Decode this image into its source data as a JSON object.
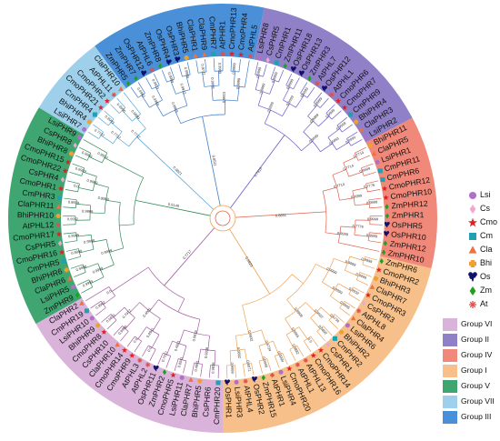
{
  "groups": [
    {
      "label": "Group VI",
      "color": "#d9b3d9",
      "line": "#a35ca3"
    },
    {
      "label": "Group II",
      "color": "#8f80c8",
      "line": "#6a5acd"
    },
    {
      "label": "Group IV",
      "color": "#f0897a",
      "line": "#e0604e"
    },
    {
      "label": "Group I",
      "color": "#f7c08a",
      "line": "#f0a050"
    },
    {
      "label": "Group V",
      "color": "#3fa672",
      "line": "#2e8b57"
    },
    {
      "label": "Group VII",
      "color": "#9ed0ec",
      "line": "#5aa8d8"
    },
    {
      "label": "Group III",
      "color": "#4a90d9",
      "line": "#3a7bc8"
    }
  ],
  "species": [
    {
      "label": "Lsi",
      "icon": "circle",
      "color": "#b070c8"
    },
    {
      "label": "Cs",
      "icon": "diamond",
      "color": "#f0a8d0"
    },
    {
      "label": "Cmo",
      "icon": "star",
      "color": "#e02020"
    },
    {
      "label": "Cm",
      "icon": "square",
      "color": "#20a0b0"
    },
    {
      "label": "Cla",
      "icon": "triangle",
      "color": "#f07040"
    },
    {
      "label": "Bhi",
      "icon": "cross",
      "color": "#f0a030"
    },
    {
      "label": "Os",
      "icon": "trefoil",
      "color": "#10106a"
    },
    {
      "label": "Zm",
      "icon": "diamond",
      "color": "#20a020"
    },
    {
      "label": "At",
      "icon": "asterisk",
      "color": "#e05050"
    }
  ],
  "tree": [
    {
      "group": 0,
      "leaves": [
        [
          "CmPHR20",
          "Cm",
          "0.9839"
        ],
        [
          "CsPHR6",
          "Cs",
          "0.9822"
        ],
        [
          "BhiPHR5",
          "Bhi",
          "0.4801"
        ],
        [
          "ClaPHR7",
          "Cla",
          "0.9999"
        ],
        [
          "LsiPHR11",
          "Lsi",
          "0.8941"
        ],
        [
          "CmoPHR5",
          "Cmo",
          "0.6542"
        ],
        [
          "ZmPHR2",
          "Zm",
          "0.7917"
        ],
        [
          "OsPHR11",
          "Os",
          "0.6225"
        ],
        [
          "AtPHL2",
          "At",
          "0.0"
        ],
        [
          "AtPHL3",
          "At",
          "0.9999"
        ],
        [
          "CmoPHR9",
          "Cmo",
          "0.0"
        ],
        [
          "CmoPHR14",
          "Cmo",
          "0.9855"
        ],
        [
          "ClaPHR10",
          "Cla",
          "0.9988"
        ],
        [
          "CsPHR10",
          "Cs",
          "0.9999"
        ],
        [
          "CmoPHR8",
          "Cmo",
          "0.9831"
        ],
        [
          "BhiPHR9",
          "Bhi",
          "0.99"
        ],
        [
          "LsiPHR10",
          "Lsi",
          "0.9962"
        ],
        [
          "CmPHR19",
          "Cm",
          "0.9999"
        ],
        [
          "ClaPHR2",
          "Cla",
          "0.9999"
        ]
      ]
    },
    {
      "group": 4,
      "leaves": [
        [
          "ZmPHR9",
          "Zm",
          "0.9999"
        ],
        [
          "LsiPHR5",
          "Lsi",
          "0.9981"
        ],
        [
          "ClaPHR6",
          "Cla",
          "0.9988"
        ],
        [
          "BhiPHR6",
          "Bhi",
          "0.9961"
        ],
        [
          "CmPHR5",
          "Cm",
          "0.9999"
        ],
        [
          "CmoPHR16",
          "Cmo",
          "0.0"
        ],
        [
          "CsPHR5",
          "Cs",
          "0.9989"
        ],
        [
          "CmoPHR17",
          "Cmo",
          "0.9987"
        ],
        [
          "AtPHL12",
          "At",
          "0.9932"
        ],
        [
          "BhiPHR10",
          "Bhi",
          "0.9931"
        ],
        [
          "ClaPHR11",
          "Cla",
          "0.9939"
        ],
        [
          "CmPHR3",
          "Cm",
          "0.9974"
        ],
        [
          "CmoPHR1",
          "Cmo",
          "0.0"
        ],
        [
          "CsPHR4",
          "Cs",
          "0.9999"
        ],
        [
          "CmoPHR22",
          "Cmo",
          "0.9999"
        ],
        [
          "CmoPHR15",
          "Cmo",
          "0.9999"
        ],
        [
          "BhiPHR8",
          "Bhi",
          "0.9999"
        ],
        [
          "CsPHR8",
          "Cs",
          "0.9983"
        ],
        [
          "LsiPHR9",
          "Lsi",
          "0.9999"
        ]
      ]
    },
    {
      "group": 5,
      "leaves": [
        [
          "LsiPHR7",
          "Lsi",
          "0.7737"
        ],
        [
          "BhiPHR4",
          "Bhi",
          "0.9708"
        ],
        [
          "CmPHR4",
          "Cm",
          "0.9999"
        ],
        [
          "CmoPHR21",
          "Cmo",
          "0.8611"
        ],
        [
          "CmoPHR2",
          "Cmo",
          "0.9996"
        ],
        [
          "AtPHL11",
          "At",
          "0.5249"
        ],
        [
          "ClaPHR10",
          "Cla",
          "0.9995"
        ]
      ]
    },
    {
      "group": 6,
      "leaves": [
        [
          "ZmPHR5",
          "Zm",
          "0.9969"
        ],
        [
          "ZmPHR7",
          "Zm",
          "0.9999"
        ],
        [
          "OsPHR12",
          "Os",
          "0.9923"
        ],
        [
          "AtPHL6",
          "At",
          "0.9659"
        ],
        [
          "ZmPHR8",
          "Zm",
          "0.9999"
        ],
        [
          "OsPHR4",
          "Os",
          "0.9771"
        ],
        [
          "OsPHR3",
          "Os",
          "0.9999"
        ],
        [
          "BhiPHR5",
          "Bhi",
          "0.9999"
        ],
        [
          "ClaPHR1",
          "Cla",
          "0.9722"
        ],
        [
          "ClaPHR9",
          "Cla",
          "0.9999"
        ],
        [
          "CmPHR7",
          "Cm",
          "0.9999"
        ],
        [
          "AtPHR1",
          "At",
          "0.9973"
        ],
        [
          "CmoPHR13",
          "Cmo",
          "0.9999"
        ],
        [
          "CmoPHR4",
          "Cmo",
          "0.9999"
        ],
        [
          "AtPHL5",
          "At",
          "0.9973"
        ]
      ]
    },
    {
      "group": 1,
      "leaves": [
        [
          "LsiPHR8",
          "Lsi",
          "0.9999"
        ],
        [
          "CsPHR5",
          "Cs",
          "0.9999"
        ],
        [
          "CmPHR1",
          "Cm",
          "0.9999"
        ],
        [
          "ZmPHR11",
          "Zm",
          "0.9999"
        ],
        [
          "OsPHR18",
          "Os",
          "0.9999"
        ],
        [
          "OsPHR13",
          "Os",
          "0.9999"
        ],
        [
          "ZmPHR3",
          "Zm",
          "0.6893"
        ],
        [
          "AtPHL7",
          "At",
          "0.9961"
        ],
        [
          "OsPHR12",
          "Os",
          "0.9999"
        ],
        [
          "AtPHL1",
          "At",
          "0.9999"
        ],
        [
          "CmoPHR6",
          "Cmo",
          "0.9999"
        ],
        [
          "CmoPHR7",
          "Cmo",
          "0.9999"
        ],
        [
          "CmPHR9",
          "Cm",
          "0.9999"
        ],
        [
          "BhiPHR4",
          "Bhi",
          "0.9999"
        ],
        [
          "ClaPHR3",
          "Cla",
          "0.9999"
        ],
        [
          "LsiPHR2",
          "Lsi",
          "0.7847"
        ]
      ]
    },
    {
      "group": 2,
      "leaves": [
        [
          "BhiPHR11",
          "Bhi",
          "0.7714"
        ],
        [
          "ClaPHR5",
          "Cla",
          "0.9768"
        ],
        [
          "LsiPHR1",
          "Lsi",
          "0.9999"
        ],
        [
          "CmPHR11",
          "Cm",
          "0.9909"
        ],
        [
          "CmPHR6",
          "Cm",
          "0.7776"
        ],
        [
          "CmoPHR12",
          "Cmo",
          "0.9919"
        ],
        [
          "CmoPHR10",
          "Cmo",
          "0.9999"
        ],
        [
          "ZmPHR12",
          "Zm",
          "0.9776"
        ],
        [
          "ZmPHR1",
          "Zm",
          "0.9999"
        ],
        [
          "OsPHR5",
          "Os",
          "0.9956"
        ],
        [
          "OsPHR10",
          "Os",
          "0.9989"
        ],
        [
          "ZmPHR12",
          "Zm",
          "0.6221"
        ],
        [
          "ZmPHR10",
          "Zm",
          "0.9999"
        ]
      ]
    },
    {
      "group": 3,
      "leaves": [
        [
          "ZmPHR6",
          "Zm",
          "0.9999"
        ],
        [
          "CmoPHR2",
          "Cmo",
          "0.9999"
        ],
        [
          "BhiPHR3",
          "Bhi",
          "0.9999"
        ],
        [
          "ClaPHR7",
          "Cla",
          "0.9953"
        ],
        [
          "CmoPHR3",
          "Cmo",
          "0.9932"
        ],
        [
          "CsPHR3",
          "Cs",
          "0.6033"
        ],
        [
          "AtPHL8",
          "At",
          "0.9965"
        ],
        [
          "ClaPHR4",
          "Cla",
          "0.7676"
        ],
        [
          "LsiPHR6",
          "Lsi",
          "0.6734"
        ],
        [
          "BhiPHR2",
          "Bhi",
          "0.8792"
        ],
        [
          "CmPHR2",
          "Cm",
          "0.5892"
        ],
        [
          "CsPHR1",
          "Cs",
          "0.6474"
        ],
        [
          "CmoPHR14",
          "Cmo",
          "0.0"
        ],
        [
          "CmoPHR16",
          "Cmo",
          "0.9999"
        ],
        [
          "AtPHL13",
          "At",
          "0.9882"
        ],
        [
          "AtPHL1",
          "At",
          "0.9999"
        ],
        [
          "CmoPHR20",
          "Cmo",
          "0.9999"
        ],
        [
          "LsiPHR4",
          "Lsi",
          "0.7661"
        ],
        [
          "AtPHR1",
          "At",
          "0.9999"
        ],
        [
          "ZmPHR15",
          "Zm",
          "0.9999"
        ],
        [
          "OsPHR2",
          "Os",
          "0.6071"
        ],
        [
          "AtPHL4",
          "At",
          "0.0"
        ],
        [
          "LsiPHR3",
          "Lsi",
          "0.9999"
        ],
        [
          "OsPHR1",
          "Os",
          "0.6338"
        ]
      ]
    }
  ],
  "backbone_support": [
    "0.7717",
    "0.5148",
    "0.9821",
    "0.8511",
    "0.7816",
    "0.6851",
    "0.9823",
    "0.5248",
    "0.9999",
    "0.9999",
    "0.8831",
    "0.9999",
    "0.6471",
    "0.9999",
    "0.8511",
    "0.7818",
    "1",
    "1"
  ]
}
